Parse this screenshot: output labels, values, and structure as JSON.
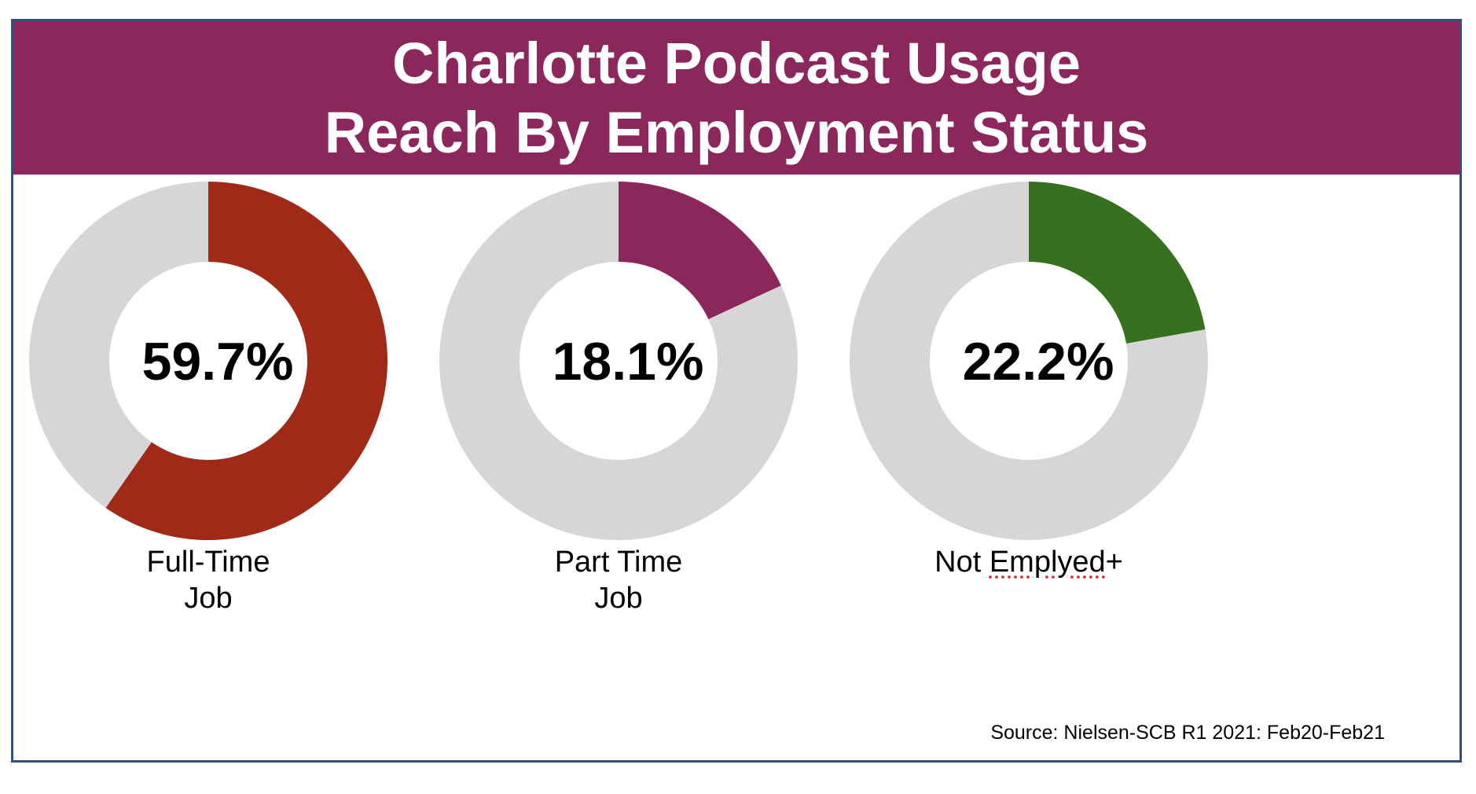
{
  "title": {
    "line1": "Charlotte Podcast Usage",
    "line2": "Reach By Employment Status"
  },
  "colors": {
    "title_background": "#8c275c",
    "remainder": "#d6d6d6",
    "frame_border": "#2f4f7f"
  },
  "chart_data": [
    {
      "type": "pie",
      "style": "donut",
      "value_label": "59.7%",
      "category_lines": [
        "Full-Time",
        "Job"
      ],
      "values": [
        59.7,
        40.3
      ],
      "slice_colors": [
        "#a02a17",
        "#d6d6d6"
      ]
    },
    {
      "type": "pie",
      "style": "donut",
      "value_label": "18.1%",
      "category_lines": [
        "Part Time",
        "Job"
      ],
      "values": [
        18.1,
        81.9
      ],
      "slice_colors": [
        "#8c275c",
        "#d6d6d6"
      ]
    },
    {
      "type": "pie",
      "style": "donut",
      "value_label": "22.2%",
      "category_lines": [
        "Not Emplyed+"
      ],
      "values": [
        22.2,
        77.8
      ],
      "slice_colors": [
        "#35711f",
        "#d6d6d6"
      ]
    }
  ],
  "source": "Source: Nielsen-SCB R1 2021: Feb20-Feb21"
}
